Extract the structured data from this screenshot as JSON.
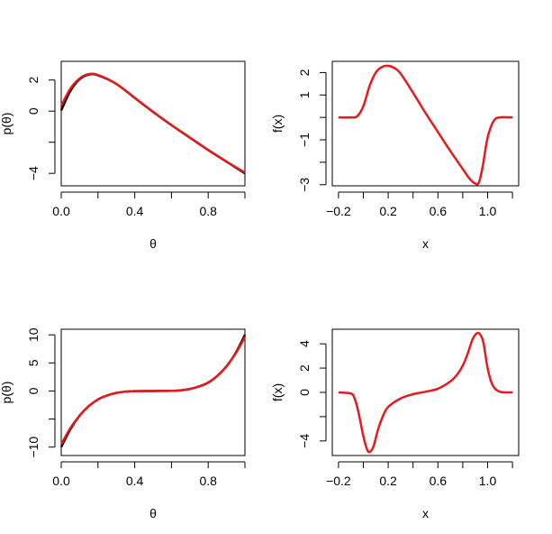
{
  "colors": {
    "background": "#ffffff",
    "fit": "#e41a1c",
    "true": "#000000"
  },
  "chart_data": [
    {
      "type": "line",
      "panel": "top-left",
      "xlabel": "θ",
      "ylabel": "p(θ)",
      "xlim": [
        0,
        1
      ],
      "ylim": [
        -4.8,
        3.2
      ],
      "xticks": [
        0.0,
        0.2,
        0.4,
        0.6,
        0.8,
        1.0
      ],
      "xtick_labels": [
        "0.0",
        "",
        "0.4",
        "",
        "0.8",
        ""
      ],
      "yticks": [
        -4,
        -2,
        0,
        2
      ],
      "ytick_labels": [
        "−4",
        "",
        "0",
        "2"
      ],
      "series": [
        {
          "color": "#000000",
          "x": [
            0,
            0.05,
            0.1,
            0.15,
            0.2,
            0.3,
            0.4,
            0.5,
            0.6,
            0.7,
            0.8,
            0.9,
            1.0
          ],
          "y": [
            0.05,
            1.3,
            2.05,
            2.35,
            2.3,
            1.75,
            0.85,
            -0.05,
            -0.9,
            -1.7,
            -2.5,
            -3.25,
            -4.0
          ]
        },
        {
          "color": "#e41a1c",
          "x": [
            0,
            0.05,
            0.1,
            0.15,
            0.2,
            0.3,
            0.4,
            0.5,
            0.6,
            0.7,
            0.8,
            0.9,
            1.0
          ],
          "y": [
            0.35,
            1.45,
            2.1,
            2.38,
            2.32,
            1.75,
            0.85,
            -0.05,
            -0.9,
            -1.7,
            -2.5,
            -3.25,
            -3.95
          ]
        }
      ]
    },
    {
      "type": "line",
      "panel": "top-right",
      "xlabel": "x",
      "ylabel": "f(x)",
      "xlim": [
        -0.25,
        1.25
      ],
      "ylim": [
        -3.05,
        2.5
      ],
      "xticks": [
        -0.2,
        0.0,
        0.2,
        0.4,
        0.6,
        0.8,
        1.0,
        1.2
      ],
      "xtick_labels": [
        "−0.2",
        "",
        "0.2",
        "",
        "0.6",
        "",
        "1.0",
        ""
      ],
      "yticks": [
        -3,
        -2,
        -1,
        0,
        1,
        2
      ],
      "ytick_labels": [
        "−3",
        "",
        "−1",
        "",
        "1",
        "2"
      ],
      "series": [
        {
          "color": "#e41a1c",
          "x": [
            -0.2,
            -0.1,
            -0.05,
            0.0,
            0.05,
            0.1,
            0.15,
            0.2,
            0.25,
            0.3,
            0.4,
            0.5,
            0.6,
            0.7,
            0.8,
            0.85,
            0.9,
            0.93,
            0.96,
            1.0,
            1.05,
            1.1,
            1.2
          ],
          "y": [
            0.0,
            0.0,
            0.05,
            0.5,
            1.4,
            2.0,
            2.25,
            2.3,
            2.2,
            1.95,
            1.1,
            0.2,
            -0.65,
            -1.5,
            -2.3,
            -2.7,
            -2.95,
            -2.9,
            -2.2,
            -0.9,
            -0.15,
            0.0,
            0.0
          ]
        }
      ]
    },
    {
      "type": "line",
      "panel": "bottom-left",
      "xlabel": "θ",
      "ylabel": "p(θ)",
      "xlim": [
        0,
        1
      ],
      "ylim": [
        -11.5,
        11
      ],
      "xticks": [
        0.0,
        0.2,
        0.4,
        0.6,
        0.8,
        1.0
      ],
      "xtick_labels": [
        "0.0",
        "",
        "0.4",
        "",
        "0.8",
        ""
      ],
      "yticks": [
        -10,
        -5,
        0,
        5,
        10
      ],
      "ytick_labels": [
        "−10",
        "",
        "0",
        "5",
        "10"
      ],
      "series": [
        {
          "color": "#000000",
          "x": [
            0,
            0.05,
            0.1,
            0.15,
            0.2,
            0.25,
            0.3,
            0.35,
            0.4,
            0.5,
            0.6,
            0.65,
            0.7,
            0.75,
            0.8,
            0.85,
            0.9,
            0.95,
            1.0
          ],
          "y": [
            -10.0,
            -6.8,
            -4.4,
            -2.7,
            -1.5,
            -0.8,
            -0.35,
            -0.12,
            -0.03,
            0.0,
            0.03,
            0.12,
            0.35,
            0.8,
            1.5,
            2.7,
            4.4,
            6.8,
            10.0
          ]
        },
        {
          "color": "#e41a1c",
          "x": [
            0,
            0.05,
            0.1,
            0.15,
            0.2,
            0.25,
            0.3,
            0.35,
            0.4,
            0.5,
            0.6,
            0.65,
            0.7,
            0.75,
            0.8,
            0.85,
            0.9,
            0.95,
            1.0
          ],
          "y": [
            -9.5,
            -6.6,
            -4.4,
            -2.7,
            -1.5,
            -0.8,
            -0.35,
            -0.12,
            -0.03,
            0.0,
            0.03,
            0.12,
            0.35,
            0.8,
            1.5,
            2.7,
            4.4,
            6.7,
            9.6
          ]
        }
      ]
    },
    {
      "type": "line",
      "panel": "bottom-right",
      "xlabel": "x",
      "ylabel": "f(x)",
      "xlim": [
        -0.25,
        1.25
      ],
      "ylim": [
        -5.2,
        5.2
      ],
      "xticks": [
        -0.2,
        0.0,
        0.2,
        0.4,
        0.6,
        0.8,
        1.0,
        1.2
      ],
      "xtick_labels": [
        "−0.2",
        "",
        "0.2",
        "",
        "0.6",
        "",
        "1.0",
        ""
      ],
      "yticks": [
        -4,
        -2,
        0,
        2,
        4
      ],
      "ytick_labels": [
        "−4",
        "",
        "0",
        "2",
        "4"
      ],
      "series": [
        {
          "color": "#e41a1c",
          "x": [
            -0.2,
            -0.1,
            -0.07,
            -0.04,
            0.0,
            0.03,
            0.05,
            0.08,
            0.12,
            0.16,
            0.2,
            0.3,
            0.4,
            0.5,
            0.6,
            0.7,
            0.75,
            0.8,
            0.84,
            0.88,
            0.92,
            0.95,
            0.97,
            1.0,
            1.04,
            1.1,
            1.2
          ],
          "y": [
            0.0,
            -0.1,
            -0.5,
            -1.6,
            -3.6,
            -4.7,
            -4.9,
            -4.5,
            -3.0,
            -1.9,
            -1.2,
            -0.5,
            -0.15,
            0.05,
            0.3,
            0.9,
            1.4,
            2.2,
            3.2,
            4.4,
            4.9,
            4.6,
            3.9,
            2.0,
            0.6,
            0.05,
            0.0
          ]
        }
      ]
    }
  ]
}
